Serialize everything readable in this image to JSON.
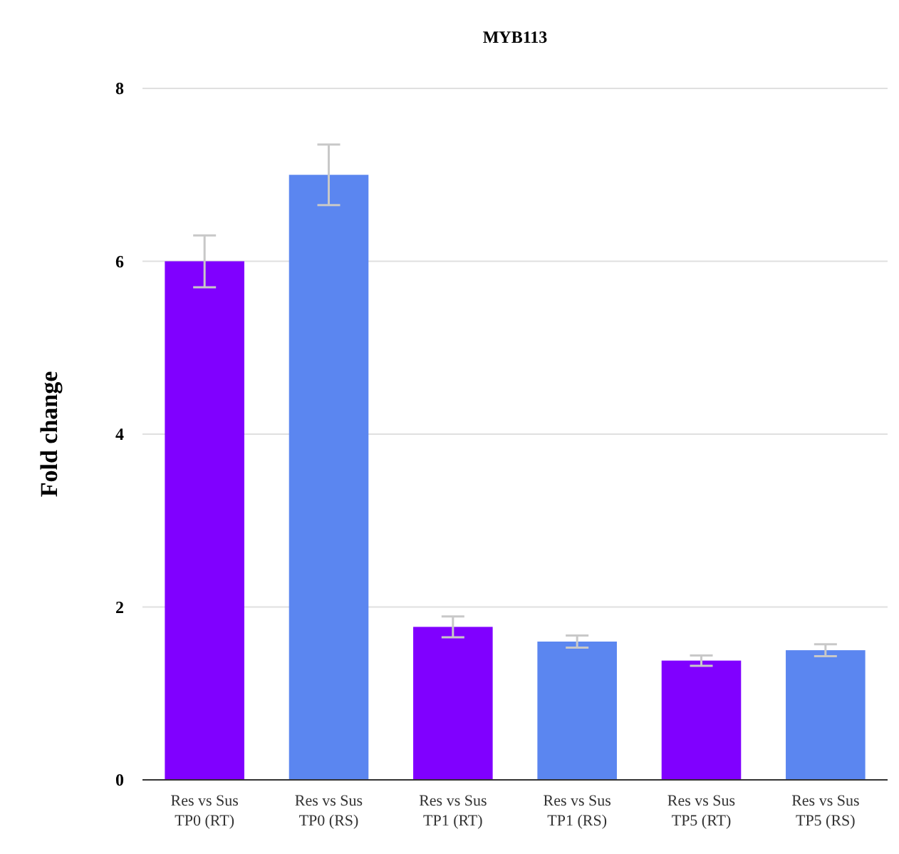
{
  "chart_data": {
    "type": "bar",
    "title": "MYB113",
    "ylabel": "Fold change",
    "categories": [
      "Res vs Sus\nTP0 (RT)",
      "Res vs Sus\nTP0 (RS)",
      "Res vs Sus\nTP1 (RT)",
      "Res vs Sus\nTP1 (RS)",
      "Res vs Sus\nTP5 (RT)",
      "Res vs Sus\nTP5 (RS)"
    ],
    "values": [
      6.0,
      7.0,
      1.77,
      1.6,
      1.38,
      1.5
    ],
    "errors": [
      0.3,
      0.35,
      0.12,
      0.07,
      0.06,
      0.07
    ],
    "colors": [
      "#8000ff",
      "#5b86f0",
      "#8000ff",
      "#5b86f0",
      "#8000ff",
      "#5b86f0"
    ],
    "ylim": [
      0,
      8
    ],
    "yticks": [
      0,
      2,
      4,
      6,
      8
    ],
    "grid": "y"
  }
}
